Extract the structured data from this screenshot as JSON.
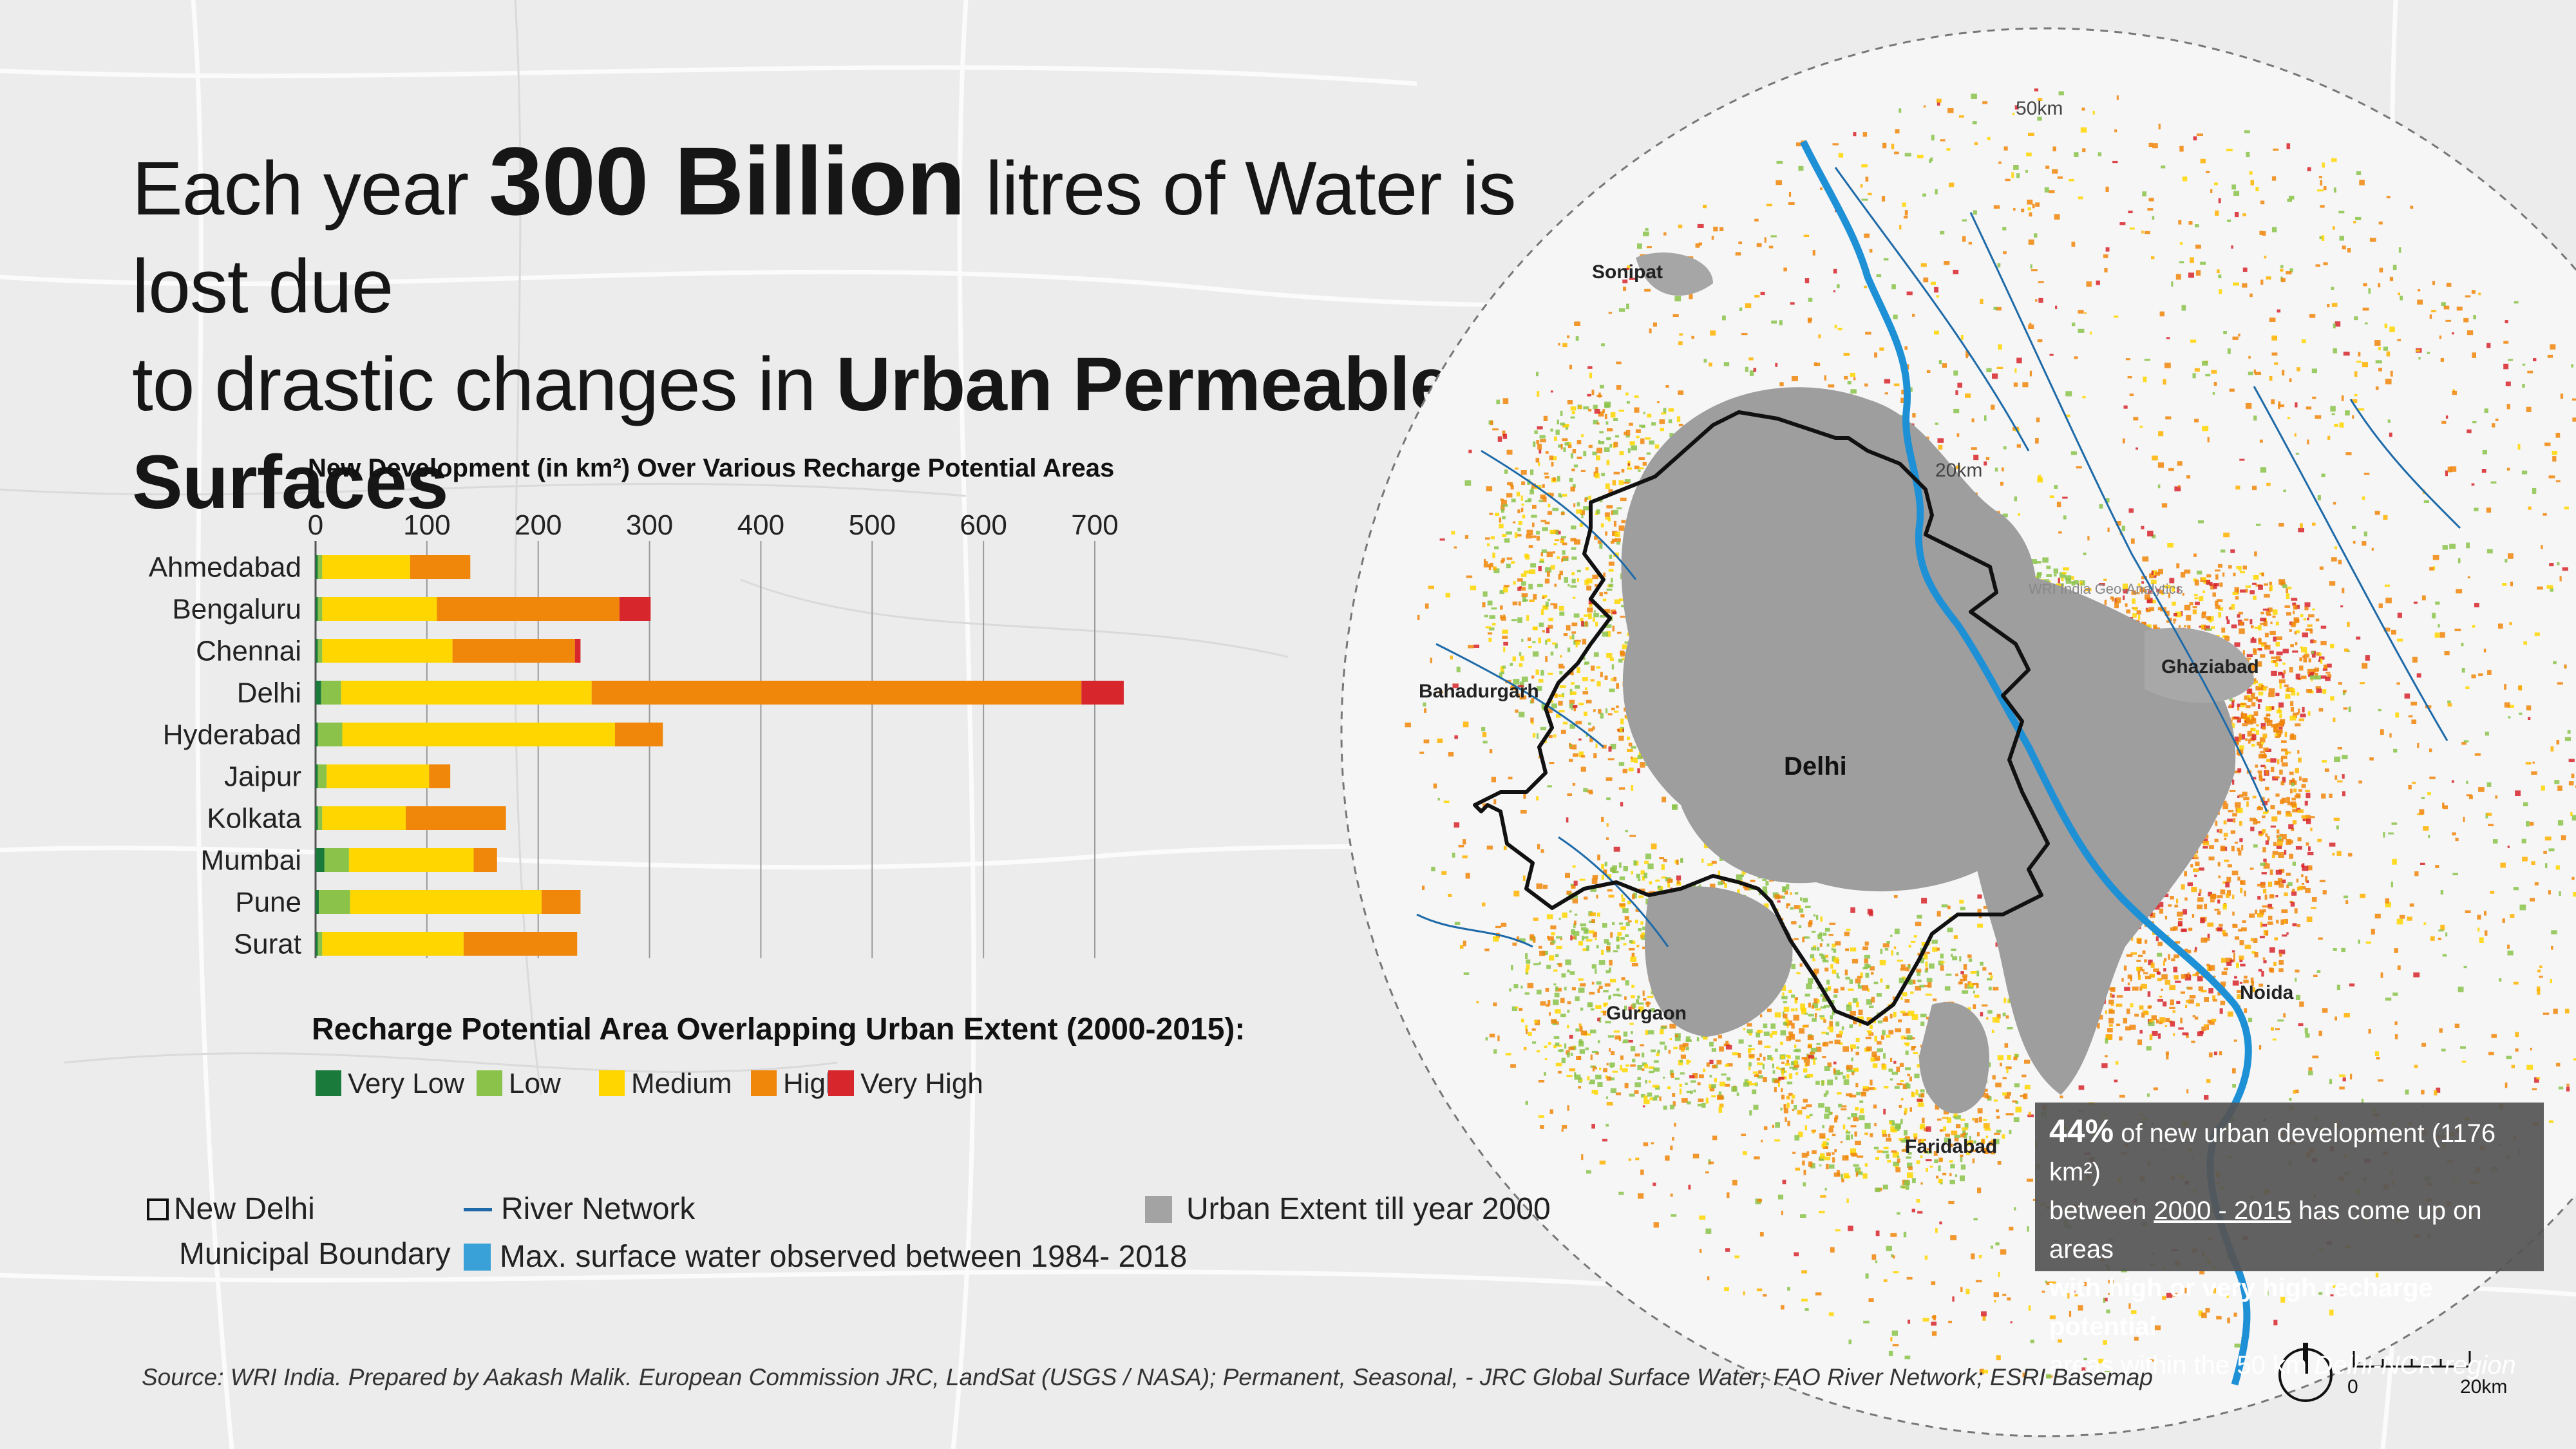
{
  "title": {
    "part1": "Each year ",
    "bold1": "300 Billion",
    "part2": " litres of Water is lost due",
    "part3": "to drastic changes in ",
    "bold2": "Urban Permeable Surfaces"
  },
  "chart_data": {
    "type": "bar",
    "stacked": true,
    "orientation": "horizontal",
    "title": "New Development (in km²) Over Various Recharge Potential Areas",
    "xlim": [
      0,
      700
    ],
    "xticks": [
      "0",
      "100",
      "200",
      "300",
      "400",
      "500",
      "600",
      "700"
    ],
    "categories": [
      "Ahmedabad",
      "Bengaluru",
      "Chennai",
      "Delhi",
      "Hyderabad",
      "Jaipur",
      "Kolkata",
      "Mumbai",
      "Pune",
      "Surat"
    ],
    "series": [
      {
        "name": "Very Low",
        "color": "#1a7a3c",
        "values": [
          2,
          2,
          2,
          5,
          2,
          2,
          2,
          8,
          3,
          2
        ]
      },
      {
        "name": "Low",
        "color": "#8bc34a",
        "values": [
          4,
          4,
          4,
          18,
          22,
          8,
          4,
          22,
          28,
          4
        ]
      },
      {
        "name": "Medium",
        "color": "#ffd600",
        "values": [
          79,
          103,
          117,
          225,
          245,
          92,
          75,
          112,
          172,
          127
        ]
      },
      {
        "name": "High",
        "color": "#f0860a",
        "values": [
          54,
          164,
          110,
          440,
          43,
          19,
          90,
          21,
          35,
          102
        ]
      },
      {
        "name": "Very High",
        "color": "#d7262c",
        "values": [
          0,
          28,
          5,
          38,
          0,
          0,
          0,
          0,
          0,
          0
        ]
      }
    ],
    "grid": true,
    "legend_title": "Recharge Potential Area Overlapping Urban Extent (2000-2015):",
    "legend_position": "bottom"
  },
  "map": {
    "labels": {
      "delhi": "Delhi",
      "sonipat": "Sonipat",
      "ghaziabad": "Ghaziabad",
      "bahadurgarh": "Bahadurgarh",
      "gurgaon": "Gurgaon",
      "noida": "Noida",
      "faridabad": "Faridabad"
    },
    "ring_outer": "50km",
    "ring_inner": "20km",
    "watermark": "WRI India Geo-Analytics",
    "scale_0": "0",
    "scale_20": "20km"
  },
  "map_legend": {
    "boundary_line1": "New Delhi",
    "boundary_line2": "Municipal Boundary",
    "river": "River Network",
    "water": "Max. surface water observed between 1984- 2018",
    "urban": "Urban Extent till year 2000"
  },
  "callout": {
    "pct": "44%",
    "t1": " of new urban development (1176 km²)",
    "t2": "between ",
    "period": "2000 - 2015",
    "t3": " has come up on areas",
    "bold": "with high or very high recharge potential",
    "t4": "areas within the 50 km ",
    "region": "Delhi-NCR region"
  },
  "source": "Source: WRI India. Prepared by Aakash Malik. European Commission JRC, LandSat (USGS / NASA); Permanent, Seasonal, - JRC Global Surface Water; FAO River Network; ESRI Basemap",
  "colors": {
    "urban": "#9e9e9e",
    "river": "#1e90d6",
    "boundary": "#111111",
    "callout_bg": "#555555"
  }
}
